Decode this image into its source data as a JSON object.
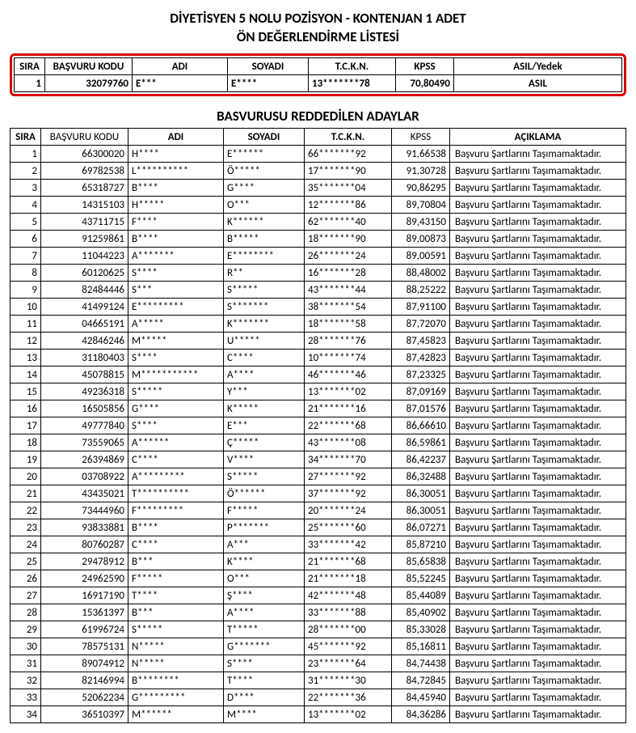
{
  "title_line1": "DİYETİSYEN 5 NOLU POZİSYON - KONTENJAN 1 ADET",
  "title_line2": "ÖN DEĞERLENDİRME LİSTESİ",
  "accepted": {
    "headers": {
      "sira": "SIRA",
      "kodu": "BAŞVURU KODU",
      "adi": "ADI",
      "soyadi": "SOYADI",
      "tckn": "T.C.K.N.",
      "kpss": "KPSS",
      "son": "ASIL/Yedek"
    },
    "rows": [
      {
        "sira": "1",
        "kodu": "32079760",
        "adi": "E***",
        "soyadi": "E****",
        "tckn": "13*******78",
        "kpss": "70,80490",
        "son": "ASIL"
      }
    ]
  },
  "rejected_title": "BASVURUSU REDDEDİLEN ADAYLAR",
  "rejected": {
    "headers": {
      "sira": "SIRA",
      "kodu": "BAŞVURU KODU",
      "adi": "ADI",
      "soyadi": "SOYADI",
      "tckn": "T.C.K.N.",
      "kpss": "KPSS",
      "son": "AÇIKLAMA"
    },
    "rows": [
      {
        "sira": "1",
        "kodu": "66300020",
        "adi": "H****",
        "soyadi": "E******",
        "tckn": "66*******92",
        "kpss": "91,66538",
        "son": "Başvuru Şartlarını Taşımamaktadır."
      },
      {
        "sira": "2",
        "kodu": "69782538",
        "adi": "L**********",
        "soyadi": "Ö*****",
        "tckn": "17*******90",
        "kpss": "91,30728",
        "son": "Başvuru Şartlarını Taşımamaktadır."
      },
      {
        "sira": "3",
        "kodu": "65318727",
        "adi": "B****",
        "soyadi": "G****",
        "tckn": "35*******04",
        "kpss": "90,86295",
        "son": "Başvuru Şartlarını Taşımamaktadır."
      },
      {
        "sira": "4",
        "kodu": "14315103",
        "adi": "H*****",
        "soyadi": "O***",
        "tckn": "12*******86",
        "kpss": "89,70804",
        "son": "Başvuru Şartlarını Taşımamaktadır."
      },
      {
        "sira": "5",
        "kodu": "43711715",
        "adi": "F****",
        "soyadi": "K******",
        "tckn": "62*******40",
        "kpss": "89,43150",
        "son": "Başvuru Şartlarını Taşımamaktadır."
      },
      {
        "sira": "6",
        "kodu": "91259861",
        "adi": "B****",
        "soyadi": "B*****",
        "tckn": "18*******90",
        "kpss": "89,00873",
        "son": "Başvuru Şartlarını Taşımamaktadır."
      },
      {
        "sira": "7",
        "kodu": "11044223",
        "adi": "A*******",
        "soyadi": "E********",
        "tckn": "26*******24",
        "kpss": "89,00591",
        "son": "Başvuru Şartlarını Taşımamaktadır."
      },
      {
        "sira": "8",
        "kodu": "60120625",
        "adi": "S****",
        "soyadi": "R**",
        "tckn": "16*******28",
        "kpss": "88,48002",
        "son": "Başvuru Şartlarını Taşımamaktadır."
      },
      {
        "sira": "9",
        "kodu": "82484446",
        "adi": "S***",
        "soyadi": "S*****",
        "tckn": "43*******44",
        "kpss": "88,25222",
        "son": "Başvuru Şartlarını Taşımamaktadır."
      },
      {
        "sira": "10",
        "kodu": "41499124",
        "adi": "E*********",
        "soyadi": "S*******",
        "tckn": "38*******54",
        "kpss": "87,91100",
        "son": "Başvuru Şartlarını Taşımamaktadır."
      },
      {
        "sira": "11",
        "kodu": "04665191",
        "adi": "A*****",
        "soyadi": "K*******",
        "tckn": "18*******58",
        "kpss": "87,72070",
        "son": "Başvuru Şartlarını Taşımamaktadır."
      },
      {
        "sira": "12",
        "kodu": "42846246",
        "adi": "M*****",
        "soyadi": "U*****",
        "tckn": "28*******76",
        "kpss": "87,45823",
        "son": "Başvuru Şartlarını Taşımamaktadır."
      },
      {
        "sira": "13",
        "kodu": "31180403",
        "adi": "S****",
        "soyadi": "C****",
        "tckn": "10*******74",
        "kpss": "87,42823",
        "son": "Başvuru Şartlarını Taşımamaktadır."
      },
      {
        "sira": "14",
        "kodu": "45078815",
        "adi": "M***********",
        "soyadi": "A****",
        "tckn": "46*******46",
        "kpss": "87,23325",
        "son": "Başvuru Şartlarını Taşımamaktadır."
      },
      {
        "sira": "15",
        "kodu": "49236318",
        "adi": "S*****",
        "soyadi": "Y***",
        "tckn": "13*******02",
        "kpss": "87,09169",
        "son": "Başvuru Şartlarını Taşımamaktadır."
      },
      {
        "sira": "16",
        "kodu": "16505856",
        "adi": "G****",
        "soyadi": "K*****",
        "tckn": "21*******16",
        "kpss": "87,01576",
        "son": "Başvuru Şartlarını Taşımamaktadır."
      },
      {
        "sira": "17",
        "kodu": "49777840",
        "adi": "S****",
        "soyadi": "E***",
        "tckn": "22*******68",
        "kpss": "86,66610",
        "son": "Başvuru Şartlarını Taşımamaktadır."
      },
      {
        "sira": "18",
        "kodu": "73559065",
        "adi": "A******",
        "soyadi": "Ç*****",
        "tckn": "43*******08",
        "kpss": "86,59861",
        "son": "Başvuru Şartlarını Taşımamaktadır."
      },
      {
        "sira": "19",
        "kodu": "26394869",
        "adi": "C****",
        "soyadi": "V****",
        "tckn": "34*******70",
        "kpss": "86,42237",
        "son": "Başvuru Şartlarını Taşımamaktadır."
      },
      {
        "sira": "20",
        "kodu": "03708922",
        "adi": "A*********",
        "soyadi": "S*****",
        "tckn": "27*******92",
        "kpss": "86,32488",
        "son": "Başvuru Şartlarını Taşımamaktadır."
      },
      {
        "sira": "21",
        "kodu": "43435021",
        "adi": "T**********",
        "soyadi": "Ö******",
        "tckn": "37*******92",
        "kpss": "86,30051",
        "son": "Başvuru Şartlarını Taşımamaktadır."
      },
      {
        "sira": "22",
        "kodu": "73444960",
        "adi": "F*********",
        "soyadi": "F*****",
        "tckn": "20*******24",
        "kpss": "86,30051",
        "son": "Başvuru Şartlarını Taşımamaktadır."
      },
      {
        "sira": "23",
        "kodu": "93833881",
        "adi": "B****",
        "soyadi": "P*******",
        "tckn": "25*******60",
        "kpss": "86,07271",
        "son": "Başvuru Şartlarını Taşımamaktadır."
      },
      {
        "sira": "24",
        "kodu": "80760287",
        "adi": "C****",
        "soyadi": "A***",
        "tckn": "33*******42",
        "kpss": "85,87210",
        "son": "Başvuru Şartlarını Taşımamaktadır."
      },
      {
        "sira": "25",
        "kodu": "29478912",
        "adi": "B***",
        "soyadi": "K****",
        "tckn": "21*******68",
        "kpss": "85,65838",
        "son": "Başvuru Şartlarını Taşımamaktadır."
      },
      {
        "sira": "26",
        "kodu": "24962590",
        "adi": "F*****",
        "soyadi": "O***",
        "tckn": "21*******18",
        "kpss": "85,52245",
        "son": "Başvuru Şartlarını Taşımamaktadır."
      },
      {
        "sira": "27",
        "kodu": "16917190",
        "adi": "T****",
        "soyadi": "Ş****",
        "tckn": "42*******48",
        "kpss": "85,44089",
        "son": "Başvuru Şartlarını Taşımamaktadır."
      },
      {
        "sira": "28",
        "kodu": "15361397",
        "adi": "B***",
        "soyadi": "A****",
        "tckn": "33*******88",
        "kpss": "85,40902",
        "son": "Başvuru Şartlarını Taşımamaktadır."
      },
      {
        "sira": "29",
        "kodu": "61996724",
        "adi": "S*****",
        "soyadi": "T*****",
        "tckn": "28*******00",
        "kpss": "85,33028",
        "son": "Başvuru Şartlarını Taşımamaktadır."
      },
      {
        "sira": "30",
        "kodu": "78575131",
        "adi": "N*****",
        "soyadi": "G*******",
        "tckn": "45*******92",
        "kpss": "85,16811",
        "son": "Başvuru Şartlarını Taşımamaktadır."
      },
      {
        "sira": "31",
        "kodu": "89074912",
        "adi": "N*****",
        "soyadi": "S****",
        "tckn": "23*******64",
        "kpss": "84,74438",
        "son": "Başvuru Şartlarını Taşımamaktadır."
      },
      {
        "sira": "32",
        "kodu": "82146994",
        "adi": "B********",
        "soyadi": "T****",
        "tckn": "31*******30",
        "kpss": "84,72845",
        "son": "Başvuru Şartlarını Taşımamaktadır."
      },
      {
        "sira": "33",
        "kodu": "52062234",
        "adi": "G*********",
        "soyadi": "D****",
        "tckn": "22*******36",
        "kpss": "84,45940",
        "son": "Başvuru Şartlarını Taşımamaktadır."
      },
      {
        "sira": "34",
        "kodu": "36510397",
        "adi": "M******",
        "soyadi": "M****",
        "tckn": "13*******02",
        "kpss": "84,36286",
        "son": "Başvuru Şartlarını Taşımamaktadır."
      }
    ]
  }
}
